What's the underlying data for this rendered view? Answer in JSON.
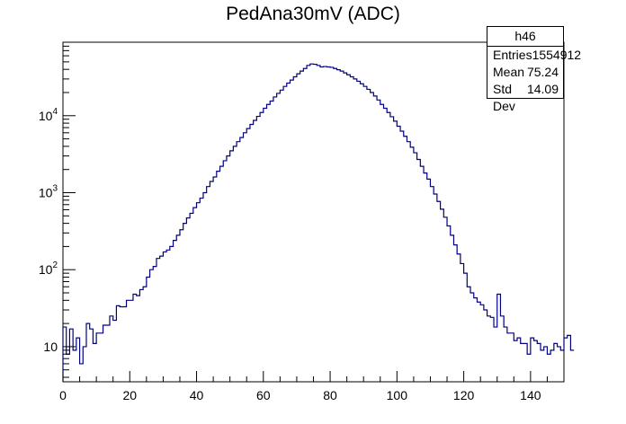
{
  "title": "PedAna30mV (ADC)",
  "stats": {
    "name": "h46",
    "rows": [
      {
        "label": "Entries",
        "value": "1554912"
      },
      {
        "label": "Mean",
        "value": "75.24"
      },
      {
        "label": "Std Dev",
        "value": "14.09"
      }
    ]
  },
  "colors": {
    "line": "#000080",
    "axis": "#000000"
  },
  "chart_data": {
    "type": "histogram",
    "title": "PedAna30mV (ADC)",
    "xlabel": "",
    "ylabel": "",
    "xlim": [
      0,
      150
    ],
    "ylim": [
      3.5,
      90000
    ],
    "yscale": "log",
    "bin_width": 1,
    "x_ticks": [
      0,
      20,
      40,
      60,
      80,
      100,
      120,
      140
    ],
    "x_tick_labels": [
      "0",
      "20",
      "40",
      "60",
      "80",
      "100",
      "120",
      "140"
    ],
    "y_ticks": [
      10,
      100,
      1000,
      10000
    ],
    "y_tick_labels": [
      "10",
      "10^2",
      "10^3",
      "10^4"
    ],
    "values": [
      18,
      8,
      17,
      9,
      13,
      6,
      10,
      20,
      17,
      11,
      15,
      15,
      19,
      19,
      25,
      22,
      34,
      33,
      33,
      40,
      40,
      48,
      46,
      55,
      60,
      80,
      100,
      110,
      140,
      150,
      170,
      180,
      200,
      240,
      280,
      330,
      400,
      470,
      540,
      640,
      740,
      850,
      1000,
      1200,
      1400,
      1600,
      1900,
      2200,
      2600,
      3000,
      3500,
      4000,
      4600,
      5200,
      6000,
      6800,
      7700,
      8700,
      9800,
      11000,
      12500,
      14000,
      15500,
      17500,
      19500,
      21500,
      24000,
      26500,
      29000,
      32000,
      35000,
      38000,
      41000,
      45000,
      47000,
      46500,
      45000,
      43000,
      43500,
      43000,
      42500,
      41000,
      39500,
      38000,
      36000,
      34000,
      32000,
      30000,
      28000,
      26000,
      24000,
      22000,
      20000,
      18000,
      16000,
      14000,
      12500,
      11000,
      9700,
      8500,
      7300,
      6300,
      5400,
      4600,
      3900,
      3300,
      2700,
      2200,
      1800,
      1500,
      1200,
      960,
      770,
      610,
      480,
      370,
      280,
      210,
      160,
      120,
      90,
      60,
      50,
      43,
      38,
      35,
      30,
      25,
      24,
      18,
      48,
      25,
      18,
      15,
      15,
      12,
      13,
      11,
      11,
      8,
      13,
      12,
      11,
      9,
      10,
      8,
      9,
      11,
      10,
      9,
      13,
      14,
      9
    ]
  }
}
